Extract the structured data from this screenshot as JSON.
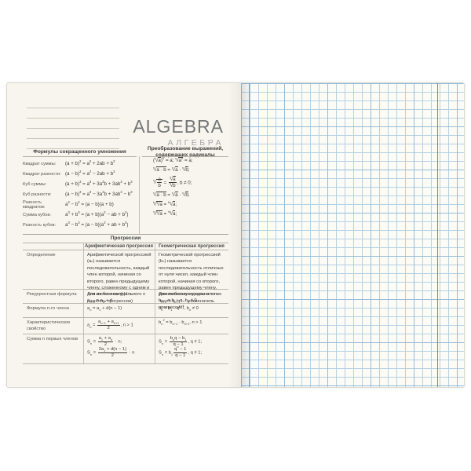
{
  "title": {
    "en": "ALGEBRA",
    "ru": "АЛГЕБРА"
  },
  "colors": {
    "left_page": "#f8f5ee",
    "right_page": "#fcfbf5",
    "grid_line": "#b4d1e6",
    "grid_line_bold": "#95bcda",
    "red_margin": "#e05d63",
    "title_gray": "#747678"
  },
  "multiplication": {
    "header": "Формулы сокращенного умножения",
    "rows": [
      {
        "label": "Квадрат суммы:",
        "formula": [
          {
            "t": "txt",
            "v": "(a + b)"
          },
          {
            "t": "sup",
            "v": "2"
          },
          {
            "t": "txt",
            "v": " = a"
          },
          {
            "t": "sup",
            "v": "2"
          },
          {
            "t": "txt",
            "v": " + 2ab + b"
          },
          {
            "t": "sup",
            "v": "2"
          }
        ]
      },
      {
        "label": "Квадрат разности:",
        "formula": [
          {
            "t": "txt",
            "v": "(a − b)"
          },
          {
            "t": "sup",
            "v": "2"
          },
          {
            "t": "txt",
            "v": " = a"
          },
          {
            "t": "sup",
            "v": "2"
          },
          {
            "t": "txt",
            "v": " − 2ab + b"
          },
          {
            "t": "sup",
            "v": "2"
          }
        ]
      },
      {
        "label": "Куб суммы:",
        "formula": [
          {
            "t": "txt",
            "v": "(a + b)"
          },
          {
            "t": "sup",
            "v": "3"
          },
          {
            "t": "txt",
            "v": " = a"
          },
          {
            "t": "sup",
            "v": "3"
          },
          {
            "t": "txt",
            "v": " + 3a"
          },
          {
            "t": "sup",
            "v": "2"
          },
          {
            "t": "txt",
            "v": "b + 3ab"
          },
          {
            "t": "sup",
            "v": "2"
          },
          {
            "t": "txt",
            "v": " + b"
          },
          {
            "t": "sup",
            "v": "3"
          }
        ]
      },
      {
        "label": "Куб разности:",
        "formula": [
          {
            "t": "txt",
            "v": "(a − b)"
          },
          {
            "t": "sup",
            "v": "3"
          },
          {
            "t": "txt",
            "v": " = a"
          },
          {
            "t": "sup",
            "v": "3"
          },
          {
            "t": "txt",
            "v": " − 3a"
          },
          {
            "t": "sup",
            "v": "2"
          },
          {
            "t": "txt",
            "v": "b + 3ab"
          },
          {
            "t": "sup",
            "v": "2"
          },
          {
            "t": "txt",
            "v": " − b"
          },
          {
            "t": "sup",
            "v": "3"
          }
        ]
      },
      {
        "label": "Разность квадратов:",
        "formula": [
          {
            "t": "txt",
            "v": "a"
          },
          {
            "t": "sup",
            "v": "2"
          },
          {
            "t": "txt",
            "v": " − b"
          },
          {
            "t": "sup",
            "v": "2"
          },
          {
            "t": "txt",
            "v": " = (a − b)(a + b)"
          }
        ]
      },
      {
        "label": "Сумма кубов:",
        "formula": [
          {
            "t": "txt",
            "v": "a"
          },
          {
            "t": "sup",
            "v": "3"
          },
          {
            "t": "txt",
            "v": " + b"
          },
          {
            "t": "sup",
            "v": "3"
          },
          {
            "t": "txt",
            "v": " = (a + b)(a"
          },
          {
            "t": "sup",
            "v": "2"
          },
          {
            "t": "txt",
            "v": " − ab + b"
          },
          {
            "t": "sup",
            "v": "2"
          },
          {
            "t": "txt",
            "v": ")"
          }
        ]
      },
      {
        "label": "Разность кубов:",
        "formula": [
          {
            "t": "txt",
            "v": "a"
          },
          {
            "t": "sup",
            "v": "3"
          },
          {
            "t": "txt",
            "v": " − b"
          },
          {
            "t": "sup",
            "v": "3"
          },
          {
            "t": "txt",
            "v": " = (a − b)(a"
          },
          {
            "t": "sup",
            "v": "2"
          },
          {
            "t": "txt",
            "v": " + ab + b"
          },
          {
            "t": "sup",
            "v": "2"
          },
          {
            "t": "txt",
            "v": ")"
          }
        ]
      }
    ]
  },
  "radicals": {
    "header_line1": "Преобразование выражений,",
    "header_line2": "содержащих радикалы",
    "rows": [
      [
        {
          "t": "txt",
          "v": "("
        },
        {
          "t": "root",
          "i": "n",
          "v": [
            {
              "t": "txt",
              "v": "a"
            }
          ]
        },
        {
          "t": "txt",
          "v": ")"
        },
        {
          "t": "sup",
          "v": "n"
        },
        {
          "t": "txt",
          "v": " = a;  "
        },
        {
          "t": "root",
          "i": "n",
          "v": [
            {
              "t": "txt",
              "v": "a"
            },
            {
              "t": "sup",
              "v": "n"
            }
          ]
        },
        {
          "t": "txt",
          "v": " = a;"
        }
      ],
      [
        {
          "t": "root",
          "i": "n",
          "v": [
            {
              "t": "txt",
              "v": "a · b"
            }
          ]
        },
        {
          "t": "txt",
          "v": " = "
        },
        {
          "t": "root",
          "i": "n",
          "v": [
            {
              "t": "txt",
              "v": "a"
            }
          ]
        },
        {
          "t": "txt",
          "v": " · "
        },
        {
          "t": "root",
          "i": "n",
          "v": [
            {
              "t": "txt",
              "v": "b"
            }
          ]
        },
        {
          "t": "txt",
          "v": ";"
        }
      ],
      [
        {
          "t": "root",
          "i": "n",
          "v": [
            {
              "t": "frac",
              "n": [
                {
                  "t": "txt",
                  "v": "a"
                }
              ],
              "d": [
                {
                  "t": "txt",
                  "v": "b"
                }
              ]
            }
          ]
        },
        {
          "t": "txt",
          "v": " = "
        },
        {
          "t": "frac",
          "n": [
            {
              "t": "root",
              "i": "n",
              "v": [
                {
                  "t": "txt",
                  "v": "a"
                }
              ]
            }
          ],
          "d": [
            {
              "t": "root",
              "i": "n",
              "v": [
                {
                  "t": "txt",
                  "v": "b"
                }
              ]
            }
          ]
        },
        {
          "t": "txt",
          "v": ", b ≠ 0;"
        }
      ],
      [
        {
          "t": "root",
          "i": "n",
          "v": [
            {
              "t": "txt",
              "v": "a · b"
            }
          ]
        },
        {
          "t": "txt",
          "v": " = "
        },
        {
          "t": "root",
          "i": "n",
          "v": [
            {
              "t": "txt",
              "v": "a"
            }
          ]
        },
        {
          "t": "txt",
          "v": " · "
        },
        {
          "t": "root",
          "i": "n",
          "v": [
            {
              "t": "txt",
              "v": "b"
            }
          ]
        },
        {
          "t": "txt",
          "v": ";"
        }
      ],
      [
        {
          "t": "root",
          "i": "k",
          "v": [
            {
              "t": "root",
              "i": "n",
              "v": [
                {
                  "t": "txt",
                  "v": "a"
                }
              ]
            }
          ]
        },
        {
          "t": "txt",
          "v": " = "
        },
        {
          "t": "root",
          "i": "kn",
          "v": [
            {
              "t": "txt",
              "v": "a"
            }
          ]
        },
        {
          "t": "txt",
          "v": ";"
        }
      ],
      [
        {
          "t": "root",
          "i": "n",
          "v": [
            {
              "t": "root",
              "i": "k",
              "v": [
                {
                  "t": "txt",
                  "v": "a"
                }
              ]
            }
          ]
        },
        {
          "t": "txt",
          "v": " = "
        },
        {
          "t": "root",
          "i": "nk",
          "v": [
            {
              "t": "txt",
              "v": "a"
            }
          ]
        },
        {
          "t": "txt",
          "v": ";"
        }
      ]
    ]
  },
  "progressions": {
    "header": "Прогрессии",
    "col_arith": "Арифметическая прогрессия",
    "col_geom": "Геометрическая прогрессия",
    "rows": [
      {
        "label": "Определение",
        "arith": [
          {
            "t": "txt",
            "v": "Арифметической прогрессией (aₙ) называется последовательность, каждый член которой, начиная со второго, равен предыдущему члену, сложенному с одним и тем же числом d (d — разность прогрессии)"
          }
        ],
        "geom": [
          {
            "t": "txt",
            "v": "Геометрической прогрессией (bₙ) называется последовательность отличных от нуля чисел, каждый член которой, начиная со второго, равен предыдущему члену, умноженному на одно и то же число q (q — знаменатель прогрессии)"
          }
        ]
      },
      {
        "label": "Рекуррентная формула",
        "arith": [
          {
            "t": "txt",
            "v": "Для любого натурального n"
          },
          {
            "t": "br"
          },
          {
            "t": "txt",
            "v": "a"
          },
          {
            "t": "sub",
            "v": "n+1"
          },
          {
            "t": "txt",
            "v": " = a"
          },
          {
            "t": "sub",
            "v": "n"
          },
          {
            "t": "txt",
            "v": " + d"
          }
        ],
        "geom": [
          {
            "t": "txt",
            "v": "Для любого натурального n"
          },
          {
            "t": "br"
          },
          {
            "t": "txt",
            "v": "b"
          },
          {
            "t": "sub",
            "v": "n+1"
          },
          {
            "t": "txt",
            "v": " = b"
          },
          {
            "t": "sub",
            "v": "n"
          },
          {
            "t": "txt",
            "v": " · q, b"
          },
          {
            "t": "sub",
            "v": "n"
          },
          {
            "t": "txt",
            "v": " ≠ 0"
          }
        ]
      },
      {
        "label": "Формула n-го члена",
        "arith": [
          {
            "t": "txt",
            "v": "a"
          },
          {
            "t": "sub",
            "v": "n"
          },
          {
            "t": "txt",
            "v": " = a"
          },
          {
            "t": "sub",
            "v": "1"
          },
          {
            "t": "txt",
            "v": " + d(n − 1)"
          }
        ],
        "geom": [
          {
            "t": "txt",
            "v": "b"
          },
          {
            "t": "sub",
            "v": "n"
          },
          {
            "t": "txt",
            "v": " = b"
          },
          {
            "t": "sub",
            "v": "1"
          },
          {
            "t": "txt",
            "v": " · q"
          },
          {
            "t": "sup",
            "v": "n−1"
          },
          {
            "t": "txt",
            "v": ", b"
          },
          {
            "t": "sub",
            "v": "n"
          },
          {
            "t": "txt",
            "v": " ≠ 0"
          }
        ]
      },
      {
        "label": "Характеристическое свойство",
        "arith": [
          {
            "t": "txt",
            "v": "a"
          },
          {
            "t": "sub",
            "v": "n"
          },
          {
            "t": "txt",
            "v": " = "
          },
          {
            "t": "frac",
            "n": [
              {
                "t": "txt",
                "v": "a"
              },
              {
                "t": "sub",
                "v": "n−1"
              },
              {
                "t": "txt",
                "v": " + a"
              },
              {
                "t": "sub",
                "v": "n+1"
              }
            ],
            "d": [
              {
                "t": "txt",
                "v": "2"
              }
            ]
          },
          {
            "t": "txt",
            "v": ", n > 1"
          }
        ],
        "geom": [
          {
            "t": "txt",
            "v": "b"
          },
          {
            "t": "sub",
            "v": "n"
          },
          {
            "t": "sup",
            "v": "2"
          },
          {
            "t": "txt",
            "v": " = b"
          },
          {
            "t": "sub",
            "v": "n−1"
          },
          {
            "t": "txt",
            "v": " · b"
          },
          {
            "t": "sub",
            "v": "n+1"
          },
          {
            "t": "txt",
            "v": ", n > 1"
          }
        ]
      },
      {
        "label": "Сумма n первых членов",
        "arith": [
          {
            "t": "txt",
            "v": "S"
          },
          {
            "t": "sub",
            "v": "n"
          },
          {
            "t": "txt",
            "v": " = "
          },
          {
            "t": "frac",
            "n": [
              {
                "t": "txt",
                "v": "a"
              },
              {
                "t": "sub",
                "v": "1"
              },
              {
                "t": "txt",
                "v": " + a"
              },
              {
                "t": "sub",
                "v": "n"
              }
            ],
            "d": [
              {
                "t": "txt",
                "v": "2"
              }
            ]
          },
          {
            "t": "txt",
            "v": " · n;"
          },
          {
            "t": "br"
          },
          {
            "t": "txt",
            "v": "S"
          },
          {
            "t": "sub",
            "v": "n"
          },
          {
            "t": "txt",
            "v": " = "
          },
          {
            "t": "frac",
            "n": [
              {
                "t": "txt",
                "v": "2a"
              },
              {
                "t": "sub",
                "v": "1"
              },
              {
                "t": "txt",
                "v": " + d(n − 1)"
              }
            ],
            "d": [
              {
                "t": "txt",
                "v": "2"
              }
            ]
          },
          {
            "t": "txt",
            "v": " · n"
          }
        ],
        "geom": [
          {
            "t": "txt",
            "v": "S"
          },
          {
            "t": "sub",
            "v": "n"
          },
          {
            "t": "txt",
            "v": " = "
          },
          {
            "t": "frac",
            "n": [
              {
                "t": "txt",
                "v": "b"
              },
              {
                "t": "sub",
                "v": "n"
              },
              {
                "t": "txt",
                "v": "q − b"
              },
              {
                "t": "sub",
                "v": "1"
              }
            ],
            "d": [
              {
                "t": "txt",
                "v": "q − 1"
              }
            ]
          },
          {
            "t": "txt",
            "v": ", q ≠ 1;"
          },
          {
            "t": "br"
          },
          {
            "t": "txt",
            "v": "S"
          },
          {
            "t": "sub",
            "v": "n"
          },
          {
            "t": "txt",
            "v": " = b"
          },
          {
            "t": "sub",
            "v": "1"
          },
          {
            "t": "frac",
            "n": [
              {
                "t": "txt",
                "v": "q"
              },
              {
                "t": "sup",
                "v": "n"
              },
              {
                "t": "txt",
                "v": " − 1"
              }
            ],
            "d": [
              {
                "t": "txt",
                "v": "q − 1"
              }
            ]
          },
          {
            "t": "txt",
            "v": ", q ≠ 1;"
          }
        ]
      }
    ]
  }
}
